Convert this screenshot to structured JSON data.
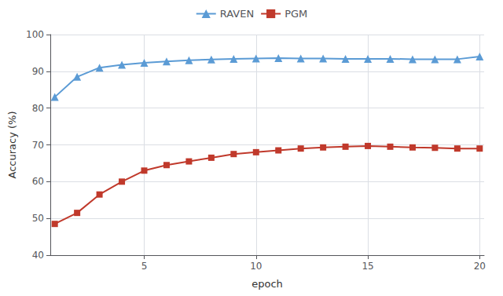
{
  "chart_data": {
    "type": "line",
    "xlabel": "epoch",
    "ylabel": "Accuracy (%)",
    "x": [
      1,
      2,
      3,
      4,
      5,
      6,
      7,
      8,
      9,
      10,
      11,
      12,
      13,
      14,
      15,
      16,
      17,
      18,
      19,
      20
    ],
    "series": [
      {
        "name": "RAVEN",
        "color": "#5b9bd5",
        "marker": "triangle",
        "values": [
          83.0,
          88.5,
          91.0,
          91.8,
          92.3,
          92.7,
          93.0,
          93.2,
          93.4,
          93.5,
          93.6,
          93.5,
          93.5,
          93.4,
          93.4,
          93.4,
          93.3,
          93.3,
          93.3,
          94.0
        ]
      },
      {
        "name": "PGM",
        "color": "#c0392b",
        "marker": "square",
        "values": [
          48.5,
          51.5,
          56.5,
          60.0,
          63.0,
          64.5,
          65.5,
          66.5,
          67.5,
          68.0,
          68.5,
          69.0,
          69.3,
          69.5,
          69.7,
          69.5,
          69.3,
          69.2,
          69.0,
          69.0
        ]
      }
    ],
    "xlim": [
      0.8,
      20.2
    ],
    "xticks": [
      5,
      10,
      15,
      20
    ],
    "ylim": [
      40,
      100
    ],
    "yticks": [
      40,
      50,
      60,
      70,
      80,
      90,
      100
    ],
    "grid": true,
    "legend": "top"
  }
}
